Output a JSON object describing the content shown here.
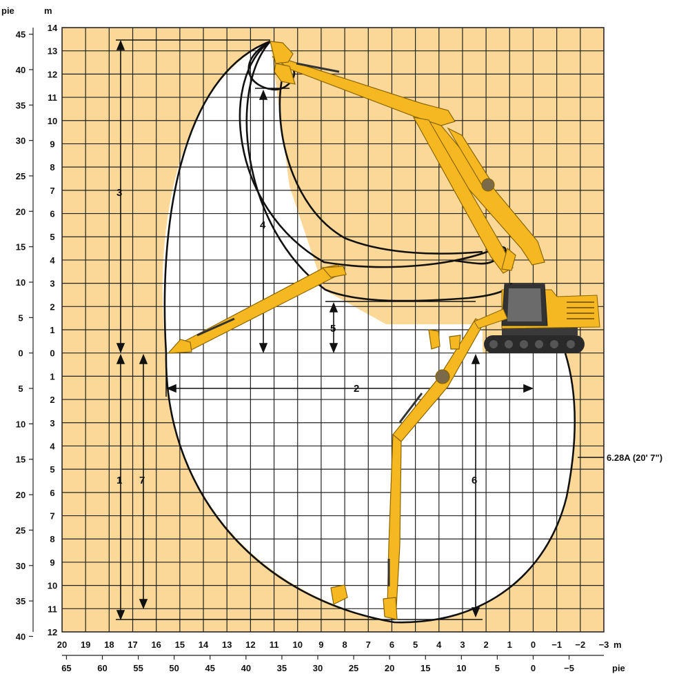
{
  "diagram": {
    "unit_ft_top": "pie",
    "unit_m_top": "m",
    "unit_m_bottom": "m",
    "unit_ft_bottom": "pie",
    "side_note": "6.28A (20' 7\")",
    "m_left_labels": [
      "14",
      "13",
      "12",
      "11",
      "10",
      "9",
      "8",
      "7",
      "6",
      "5",
      "4",
      "3",
      "2",
      "1",
      "0",
      "1",
      "2",
      "3",
      "4",
      "5",
      "6",
      "7",
      "8",
      "9",
      "10",
      "11",
      "12"
    ],
    "ft_left_labels": [
      "45",
      "40",
      "35",
      "30",
      "25",
      "20",
      "15",
      "10",
      "5",
      "0",
      "5",
      "10",
      "15",
      "20",
      "25",
      "30",
      "35",
      "40"
    ],
    "m_bottom_labels": [
      "20",
      "19",
      "18",
      "17",
      "16",
      "15",
      "14",
      "13",
      "12",
      "11",
      "10",
      "9",
      "8",
      "7",
      "6",
      "5",
      "4",
      "3",
      "2",
      "1",
      "0",
      "−1",
      "−2",
      "−3"
    ],
    "ft_bottom_labels": [
      "65",
      "60",
      "55",
      "50",
      "45",
      "40",
      "35",
      "30",
      "25",
      "20",
      "15",
      "10",
      "5",
      "0",
      "−5"
    ],
    "dimension_numbers": [
      "1",
      "2",
      "3",
      "4",
      "5",
      "6",
      "7"
    ],
    "colors": {
      "tan": "#fbd898",
      "grid": "#222222",
      "machine_yellow": "#f6b820",
      "machine_dark": "#b88600",
      "track": "#2a2a2a",
      "cab_glass": "#6b6b6b"
    }
  }
}
